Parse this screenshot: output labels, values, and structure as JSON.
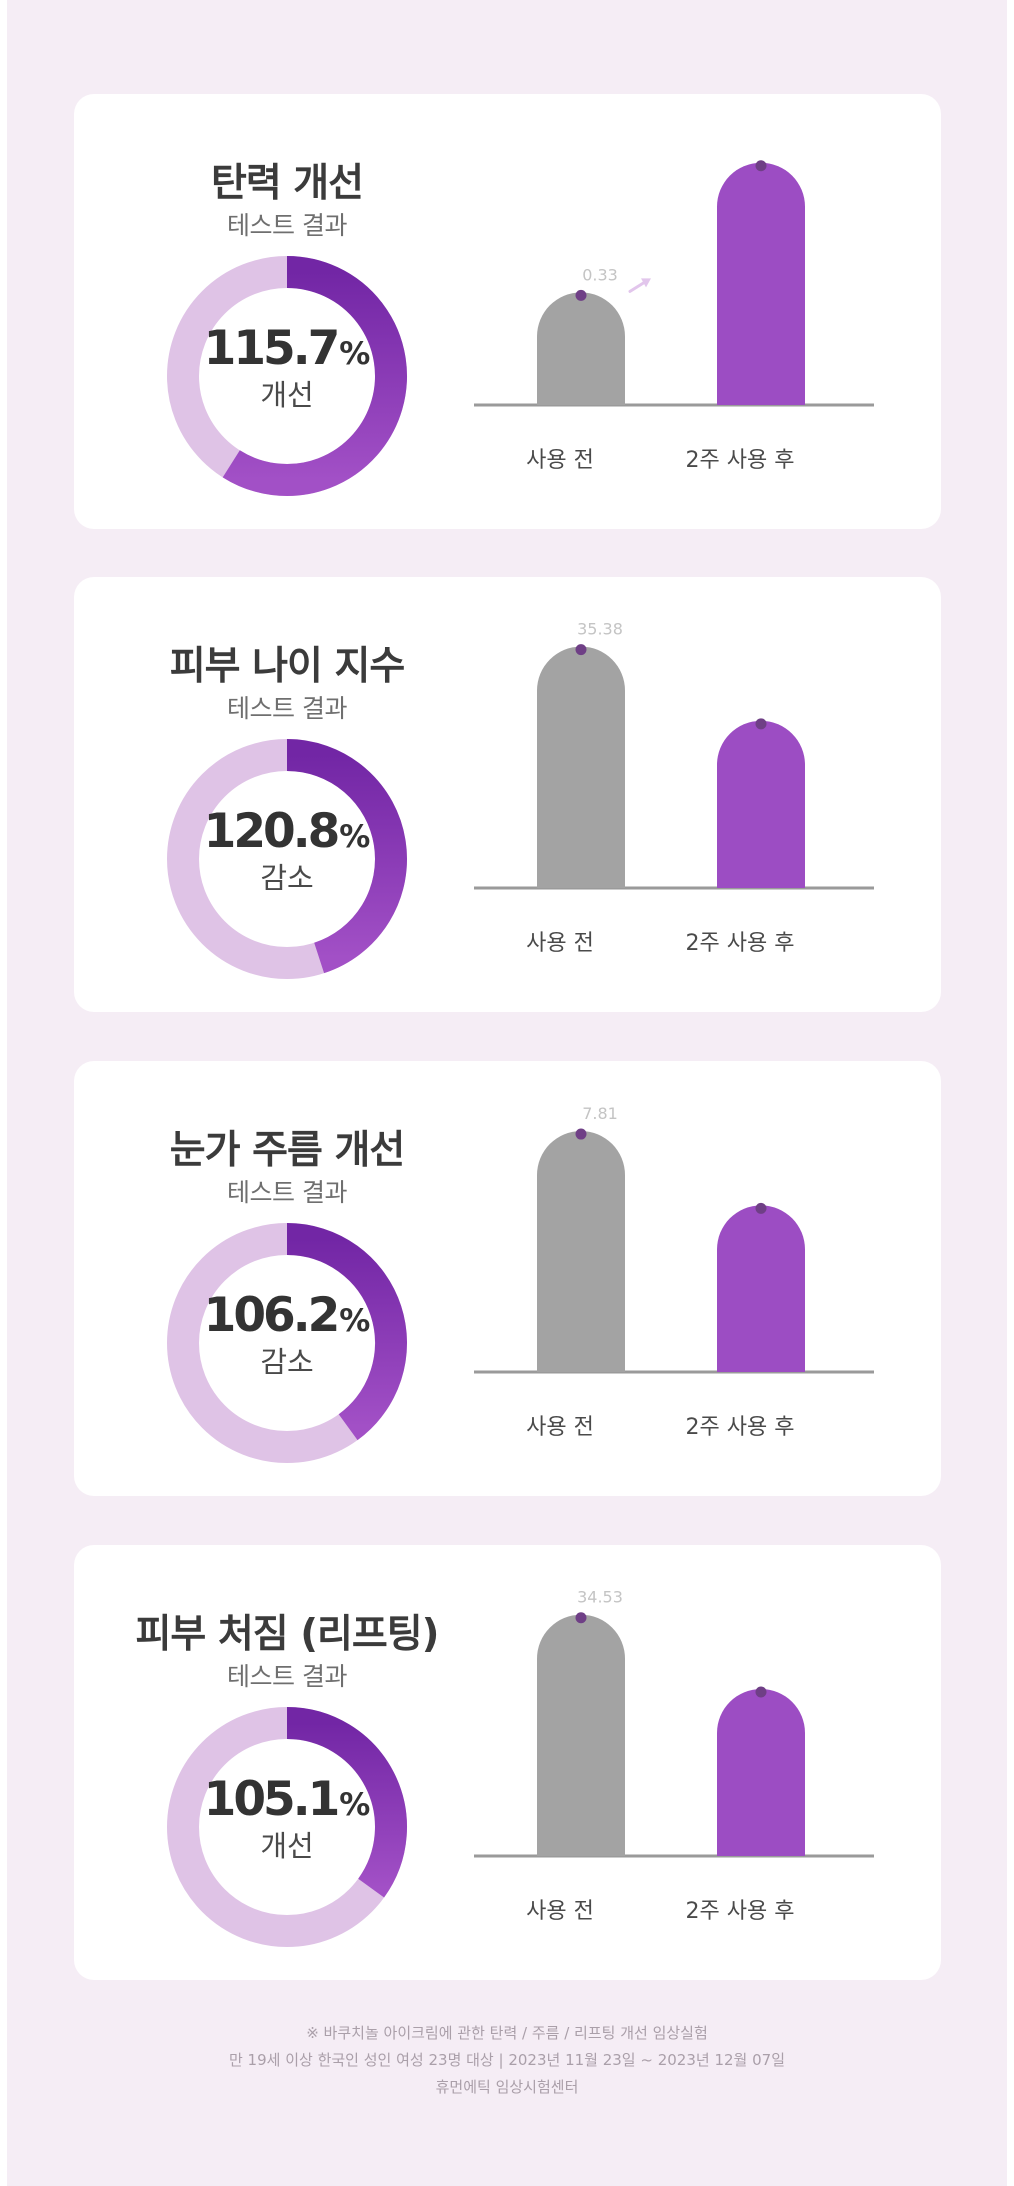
{
  "colors": {
    "before": "#a3a3a3",
    "after": "#9c4dc3",
    "dot": "#6f3f86",
    "track": "#dfc3e6",
    "arc_start": "#7226a5",
    "arc_end": "#a250c6",
    "baseline": "#9a9a9a",
    "value_label": "#c4c4c4",
    "arrow": "#e2c6ec"
  },
  "bar_labels": {
    "before": "사용 전",
    "after": "2주 사용 후"
  },
  "cards": [
    {
      "title": "탄력 개선",
      "subtitle": "테스트 결과",
      "percent_value": "115.7",
      "percent_unit": "%",
      "percent_label": "개선",
      "donut_fill_fraction": 0.59,
      "show_arrow": true
    },
    {
      "title": "피부 나이 지수",
      "subtitle": "테스트 결과",
      "percent_value": "120.8",
      "percent_unit": "%",
      "percent_label": "감소",
      "donut_fill_fraction": 0.45,
      "show_arrow": false
    },
    {
      "title": "눈가 주름 개선",
      "subtitle": "테스트 결과",
      "percent_value": "106.2",
      "percent_unit": "%",
      "percent_label": "감소",
      "donut_fill_fraction": 0.4,
      "show_arrow": false
    },
    {
      "title": "피부 처짐 (리프팅)",
      "subtitle": "테스트 결과",
      "percent_value": "105.1",
      "percent_unit": "%",
      "percent_label": "개선",
      "donut_fill_fraction": 0.35,
      "show_arrow": false
    }
  ],
  "chart_data": [
    {
      "type": "bar",
      "title": "탄력 개선",
      "categories": [
        "사용 전",
        "2주 사용 후"
      ],
      "values": [
        0.33,
        0.71
      ],
      "value_labels": [
        "0.33",
        ""
      ],
      "ylim": [
        0,
        0.85
      ]
    },
    {
      "type": "bar",
      "title": "피부 나이 지수",
      "categories": [
        "사용 전",
        "2주 사용 후"
      ],
      "values": [
        35.38,
        24.5
      ],
      "value_labels": [
        "35.38",
        ""
      ],
      "ylim": [
        0,
        42.5
      ]
    },
    {
      "type": "bar",
      "title": "눈가 주름 개선",
      "categories": [
        "사용 전",
        "2주 사용 후"
      ],
      "values": [
        7.81,
        5.4
      ],
      "value_labels": [
        "7.81",
        ""
      ],
      "ylim": [
        0,
        9.4
      ]
    },
    {
      "type": "bar",
      "title": "피부 처짐 (리프팅)",
      "categories": [
        "사용 전",
        "2주 사용 후"
      ],
      "values": [
        34.53,
        23.9
      ],
      "value_labels": [
        "34.53",
        ""
      ],
      "ylim": [
        0,
        41.5
      ]
    }
  ],
  "footer": {
    "line1": "※ 바쿠치놀 아이크림에 관한 탄력 / 주름 / 리프팅 개선 임상실험",
    "line2": "만 19세 이상 한국인 성인 여성 23명 대상   |   2023년 11월 23일 ~ 2023년 12월 07일",
    "line3": "휴먼에틱 임상시험센터"
  }
}
